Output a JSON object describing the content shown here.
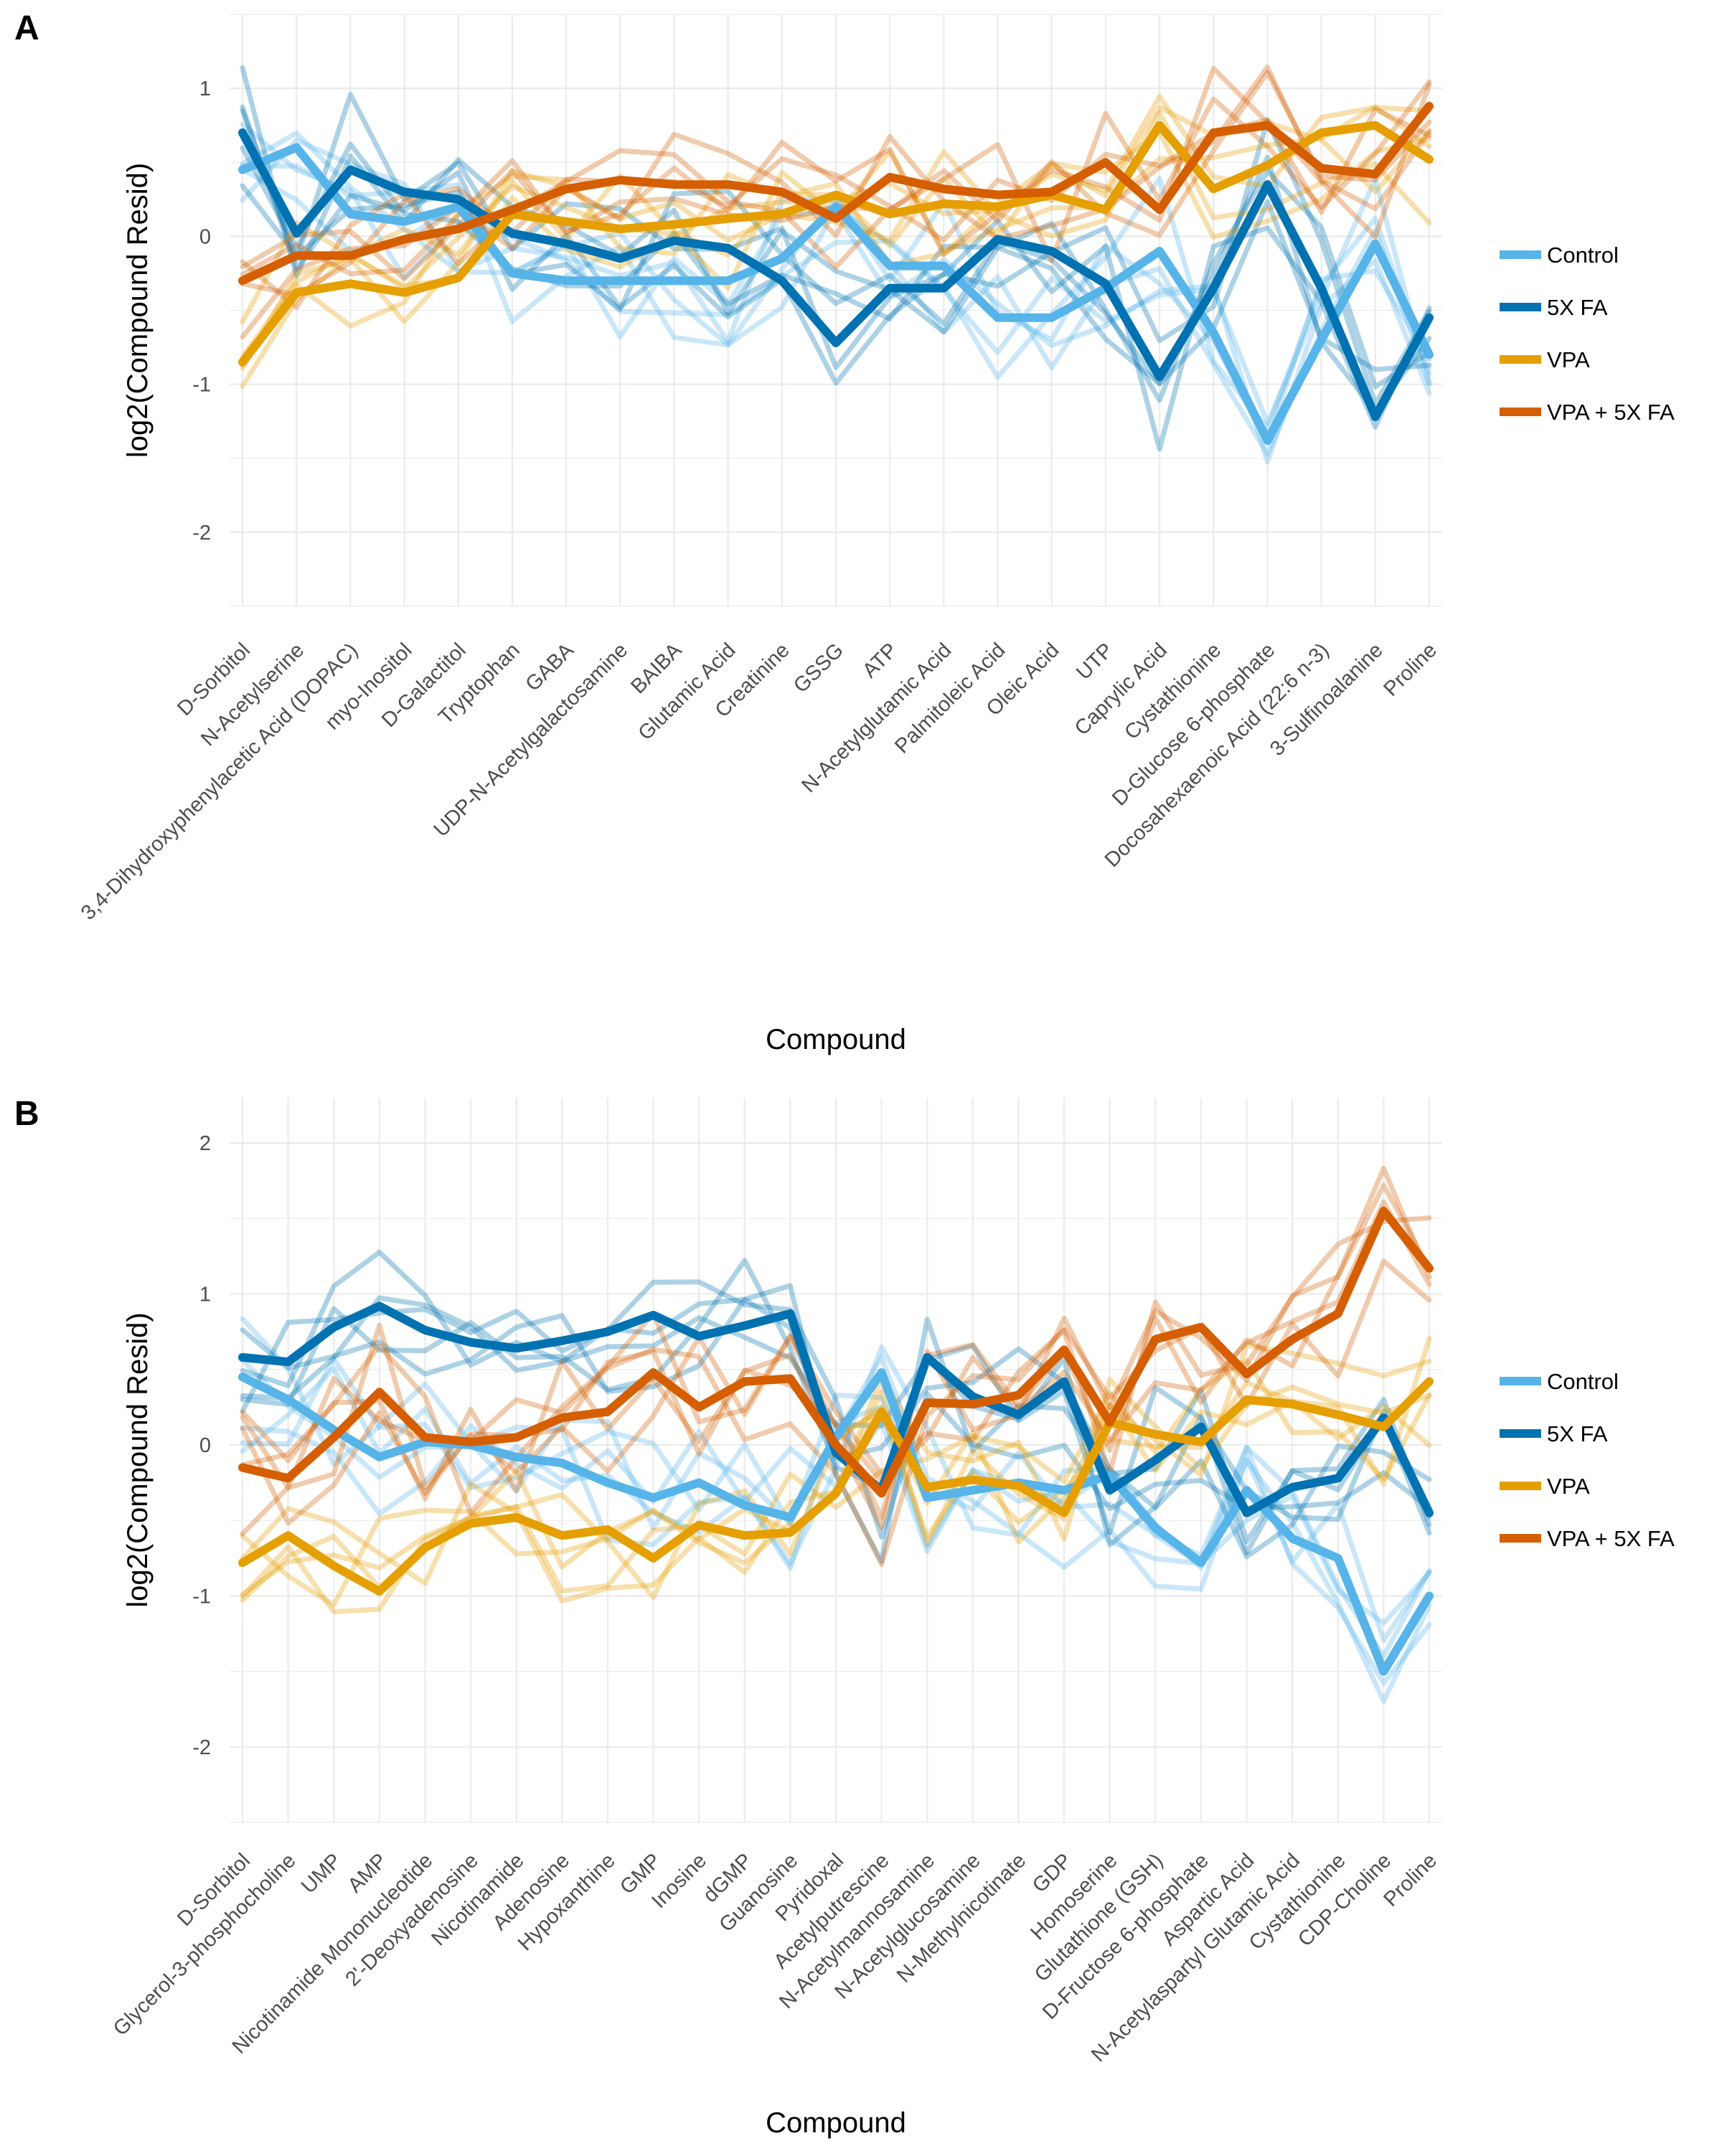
{
  "chart_data": [
    {
      "type": "line",
      "panel_label": "A",
      "xlabel": "Compound",
      "ylabel": "log2(Compound Resid)",
      "ylim": [
        -2.5,
        1.5
      ],
      "yticks": [
        -2,
        -1,
        0,
        1
      ],
      "grid": true,
      "legend": "right",
      "categories": [
        "D-Sorbitol",
        "N-Acetylserine",
        "3,4-Dihydroxyphenylacetic Acid (DOPAC)",
        "myo-Inositol",
        "D-Galactitol",
        "Tryptophan",
        "GABA",
        "UDP-N-Acetylgalactosamine",
        "BAIBA",
        "Glutamic Acid",
        "Creatinine",
        "GSSG",
        "ATP",
        "N-Acetylglutamic Acid",
        "Palmitoleic Acid",
        "Oleic Acid",
        "UTP",
        "Caprylic Acid",
        "Cystathionine",
        "D-Glucose 6-phosphate",
        "Docosahexaenoic Acid (22:6 n-3)",
        "3-Sulfinoalanine",
        "Proline"
      ],
      "series": [
        {
          "name": "Control",
          "color": "#56B4E9",
          "values": [
            0.45,
            0.6,
            0.15,
            0.1,
            0.2,
            -0.25,
            -0.3,
            -0.3,
            -0.3,
            -0.3,
            -0.15,
            0.2,
            -0.2,
            -0.2,
            -0.55,
            -0.55,
            -0.35,
            -0.1,
            -0.65,
            -1.38,
            -0.7,
            -0.05,
            -0.8
          ]
        },
        {
          "name": "5X FA",
          "color": "#0072B2",
          "values": [
            0.7,
            0.02,
            0.45,
            0.3,
            0.25,
            0.02,
            -0.05,
            -0.15,
            -0.03,
            -0.08,
            -0.3,
            -0.72,
            -0.35,
            -0.35,
            -0.02,
            -0.1,
            -0.32,
            -0.95,
            -0.35,
            0.35,
            -0.35,
            -1.22,
            -0.55
          ]
        },
        {
          "name": "VPA",
          "color": "#E69F00",
          "values": [
            -0.85,
            -0.38,
            -0.32,
            -0.38,
            -0.28,
            0.15,
            0.1,
            0.05,
            0.08,
            0.12,
            0.15,
            0.28,
            0.15,
            0.22,
            0.2,
            0.28,
            0.18,
            0.75,
            0.32,
            0.48,
            0.7,
            0.75,
            0.52
          ]
        },
        {
          "name": "VPA + 5X FA",
          "color": "#D55E00",
          "values": [
            -0.3,
            -0.13,
            -0.13,
            -0.02,
            0.05,
            0.18,
            0.32,
            0.38,
            0.35,
            0.35,
            0.3,
            0.12,
            0.4,
            0.32,
            0.28,
            0.3,
            0.5,
            0.18,
            0.7,
            0.75,
            0.46,
            0.42,
            0.88
          ]
        }
      ]
    },
    {
      "type": "line",
      "panel_label": "B",
      "xlabel": "Compound",
      "ylabel": "log2(Compound Resid)",
      "ylim": [
        -2.5,
        2.3
      ],
      "yticks": [
        -2,
        -1,
        0,
        1,
        2
      ],
      "grid": true,
      "legend": "right",
      "categories": [
        "D-Sorbitol",
        "Glycerol-3-phosphocholine",
        "UMP",
        "AMP",
        "Nicotinamide Mononucleotide",
        "2'-Deoxyadenosine",
        "Nicotinamide",
        "Adenosine",
        "Hypoxanthine",
        "GMP",
        "Inosine",
        "dGMP",
        "Guanosine",
        "Pyridoxal",
        "Acetylputrescine",
        "N-Acetylmannosamine",
        "N-Acetylglucosamine",
        "N-Methylnicotinate",
        "GDP",
        "Homoserine",
        "Glutathione (GSH)",
        "D-Fructose 6-phosphate",
        "Aspartic Acid",
        "N-Acetylaspartyl Glutamic Acid",
        "Cystathionine",
        "CDP-Choline",
        "Proline"
      ],
      "series": [
        {
          "name": "Control",
          "color": "#56B4E9",
          "values": [
            0.45,
            0.3,
            0.1,
            -0.08,
            0.02,
            0.0,
            -0.08,
            -0.12,
            -0.25,
            -0.35,
            -0.25,
            -0.4,
            -0.48,
            0.05,
            0.48,
            -0.35,
            -0.3,
            -0.25,
            -0.3,
            -0.2,
            -0.55,
            -0.78,
            -0.3,
            -0.62,
            -0.75,
            -1.5,
            -1.0
          ]
        },
        {
          "name": "5X FA",
          "color": "#0072B2",
          "values": [
            0.58,
            0.55,
            0.78,
            0.92,
            0.76,
            0.68,
            0.64,
            0.69,
            0.75,
            0.86,
            0.72,
            0.79,
            0.87,
            -0.05,
            -0.3,
            0.58,
            0.32,
            0.2,
            0.42,
            -0.3,
            -0.1,
            0.12,
            -0.45,
            -0.28,
            -0.22,
            0.18,
            -0.45
          ]
        },
        {
          "name": "VPA",
          "color": "#E69F00",
          "values": [
            -0.78,
            -0.6,
            -0.8,
            -0.97,
            -0.68,
            -0.52,
            -0.48,
            -0.6,
            -0.56,
            -0.75,
            -0.53,
            -0.6,
            -0.58,
            -0.32,
            0.22,
            -0.28,
            -0.23,
            -0.27,
            -0.45,
            0.15,
            0.07,
            0.02,
            0.3,
            0.27,
            0.2,
            0.12,
            0.42
          ]
        },
        {
          "name": "VPA + 5X FA",
          "color": "#D55E00",
          "values": [
            -0.15,
            -0.22,
            0.05,
            0.35,
            0.05,
            0.02,
            0.05,
            0.18,
            0.22,
            0.48,
            0.25,
            0.42,
            0.44,
            0.0,
            -0.32,
            0.28,
            0.27,
            0.33,
            0.63,
            0.15,
            0.7,
            0.78,
            0.47,
            0.7,
            0.87,
            1.55,
            1.17
          ]
        }
      ]
    }
  ]
}
